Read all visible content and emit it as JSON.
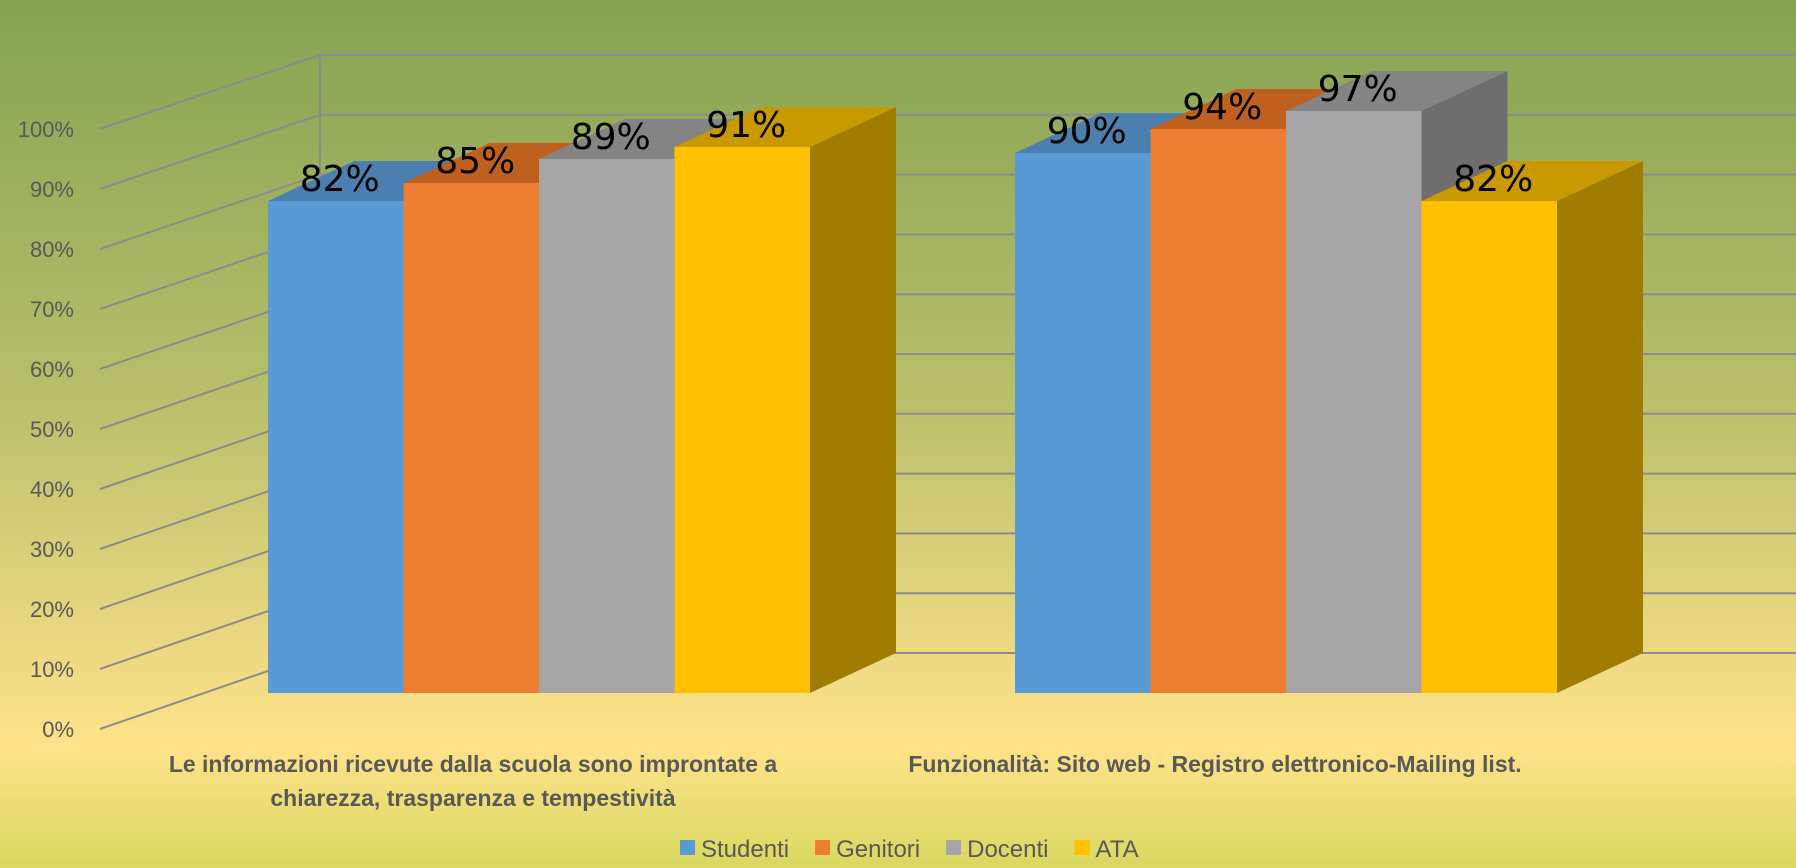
{
  "chart_data": {
    "type": "bar",
    "style": "3d-clustered-column",
    "categories": [
      [
        "Le informazioni ricevute dalla scuola sono improntate a",
        "chiarezza, trasparenza e tempestività"
      ],
      [
        "Funzionalità: Sito web -  Registro elettronico-Mailing list."
      ]
    ],
    "series": [
      {
        "name": "Studenti",
        "values": [
          0.82,
          0.9
        ],
        "color": "#5B9BD5",
        "top_color": "#4A7FB0",
        "side_color": "#3F6D98"
      },
      {
        "name": "Genitori",
        "values": [
          0.85,
          0.94
        ],
        "color": "#ED7D31",
        "top_color": "#C0601F",
        "side_color": "#A4511A"
      },
      {
        "name": "Docenti",
        "values": [
          0.89,
          0.97
        ],
        "color": "#A5A5A5",
        "top_color": "#848484",
        "side_color": "#6E6E6E"
      },
      {
        "name": "ATA",
        "values": [
          0.91,
          0.82
        ],
        "color": "#FFC000",
        "top_color": "#C99A00",
        "side_color": "#A07C00"
      }
    ],
    "data_labels": [
      [
        "82%",
        "90%"
      ],
      [
        "85%",
        "94%"
      ],
      [
        "89%",
        "97%"
      ],
      [
        "91%",
        "82%"
      ]
    ],
    "y_ticks": [
      "0%",
      "10%",
      "20%",
      "30%",
      "40%",
      "50%",
      "60%",
      "70%",
      "80%",
      "90%",
      "100%"
    ],
    "ylim": [
      0,
      1
    ],
    "grid": true,
    "legend_position": "bottom",
    "background_colors": [
      "#84A352",
      "#B8BE6A",
      "#FFE38A",
      "#D9D860"
    ]
  }
}
